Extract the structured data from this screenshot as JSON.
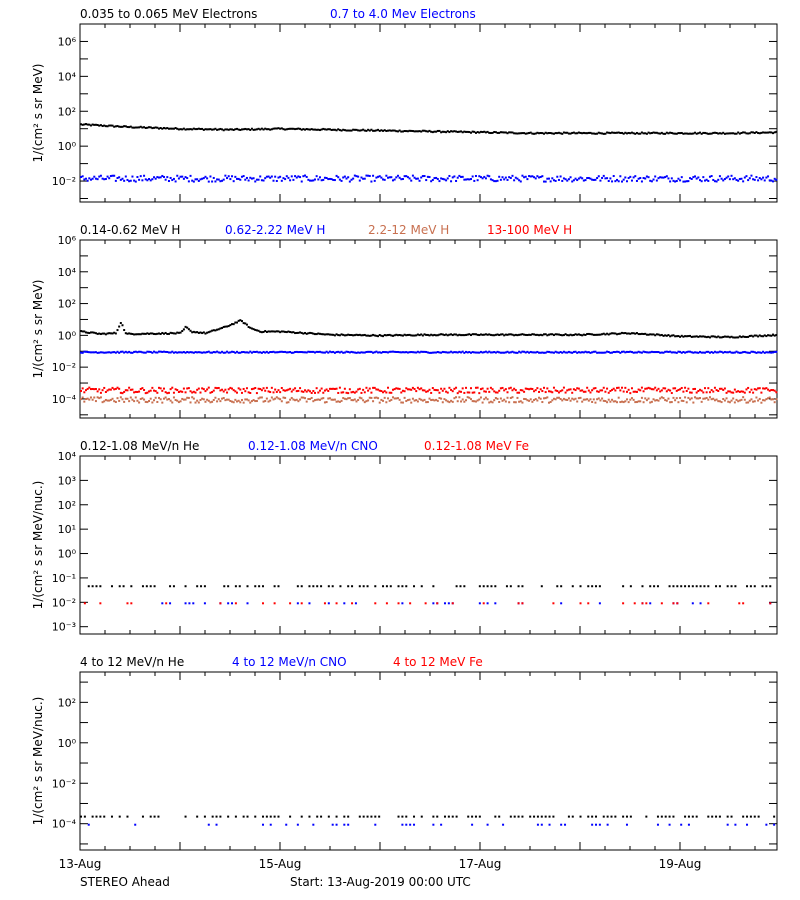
{
  "footer": {
    "left": "STEREO Ahead",
    "center": "Start: 13-Aug-2019 00:00 UTC"
  },
  "x_ticks": [
    {
      "day": 0,
      "label": "13-Aug"
    },
    {
      "day": 2,
      "label": "15-Aug"
    },
    {
      "day": 4,
      "label": "17-Aug"
    },
    {
      "day": 6,
      "label": "19-Aug"
    }
  ],
  "colors": {
    "black": "#000000",
    "blue": "#0000ff",
    "tan": "#c87050",
    "red": "#ff0000"
  },
  "chart_data": [
    {
      "type": "scatter",
      "title": "",
      "legend": [
        {
          "name": "0.035 to 0.065 MeV Electrons",
          "color": "#000000"
        },
        {
          "name": "0.7 to 4.0 Mev Electrons",
          "color": "#0000ff"
        }
      ],
      "ylabel": "1/(cm² s sr MeV)",
      "yscale": "log",
      "ylim_log10": [
        -3.2,
        7.0
      ],
      "yticks": [
        {
          "exp": -2,
          "label": "10⁻²"
        },
        {
          "exp": 0,
          "label": "10⁰"
        },
        {
          "exp": 2,
          "label": "10²"
        },
        {
          "exp": 4,
          "label": "10⁴"
        },
        {
          "exp": 6,
          "label": "10⁶"
        }
      ],
      "xlim_days": [
        0,
        7
      ],
      "series": [
        {
          "name": "0.035 to 0.065 MeV Electrons",
          "color": "#000000",
          "x_days": [
            0,
            0.5,
            1.0,
            1.5,
            2.0,
            2.5,
            3.0,
            3.5,
            4.0,
            4.5,
            5.0,
            5.5,
            6.0,
            6.5,
            7.0
          ],
          "y_log10": [
            1.3,
            1.15,
            1.05,
            1.0,
            1.05,
            1.0,
            0.95,
            0.9,
            0.85,
            0.8,
            0.8,
            0.8,
            0.8,
            0.8,
            0.85
          ]
        },
        {
          "name": "0.7 to 4.0 Mev Electrons",
          "color": "#0000ff",
          "x_days": [
            0,
            7
          ],
          "y_log10": [
            -1.8,
            -1.8
          ]
        }
      ]
    },
    {
      "type": "scatter",
      "title": "",
      "legend": [
        {
          "name": "0.14-0.62 MeV H",
          "color": "#000000"
        },
        {
          "name": "0.62-2.22 MeV H",
          "color": "#0000ff"
        },
        {
          "name": "2.2-12 MeV H",
          "color": "#c87050"
        },
        {
          "name": "13-100 MeV H",
          "color": "#ff0000"
        }
      ],
      "ylabel": "1/(cm² s sr MeV)",
      "yscale": "log",
      "ylim_log10": [
        -5.2,
        6.0
      ],
      "yticks": [
        {
          "exp": -4,
          "label": "10⁻⁴"
        },
        {
          "exp": -2,
          "label": "10⁻²"
        },
        {
          "exp": 0,
          "label": "10⁰"
        },
        {
          "exp": 2,
          "label": "10²"
        },
        {
          "exp": 4,
          "label": "10⁴"
        },
        {
          "exp": 6,
          "label": "10⁶"
        }
      ],
      "xlim_days": [
        0,
        7
      ],
      "series": [
        {
          "name": "0.14-0.62 MeV H",
          "color": "#000000",
          "x_days": [
            0,
            0.2,
            0.35,
            0.4,
            0.45,
            1.0,
            1.05,
            1.1,
            1.25,
            1.45,
            1.6,
            1.7,
            1.8,
            2.0,
            2.5,
            3.0,
            3.5,
            4.0,
            4.5,
            5.0,
            5.5,
            6.0,
            6.5,
            7.0
          ],
          "y_log10": [
            0.3,
            0.15,
            0.2,
            0.9,
            0.15,
            0.2,
            0.6,
            0.3,
            0.2,
            0.6,
            1.0,
            0.5,
            0.3,
            0.3,
            0.1,
            0.05,
            0.1,
            0.1,
            0.1,
            0.1,
            0.2,
            0.0,
            -0.05,
            0.1
          ]
        },
        {
          "name": "0.62-2.22 MeV H",
          "color": "#0000ff",
          "x_days": [
            0,
            7
          ],
          "y_log10": [
            -1.0,
            -1.0
          ]
        },
        {
          "name": "2.2-12 MeV H",
          "color": "#c87050",
          "x_days": [
            0,
            7
          ],
          "y_log10": [
            -4.0,
            -4.0
          ]
        },
        {
          "name": "13-100 MeV H",
          "color": "#ff0000",
          "x_days": [
            0,
            7
          ],
          "y_log10": [
            -3.4,
            -3.4
          ]
        }
      ]
    },
    {
      "type": "scatter",
      "title": "",
      "legend": [
        {
          "name": "0.12-1.08 MeV/n He",
          "color": "#000000"
        },
        {
          "name": "0.12-1.08 MeV/n CNO",
          "color": "#0000ff"
        },
        {
          "name": "0.12-1.08 MeV Fe",
          "color": "#ff0000"
        }
      ],
      "ylabel": "1/(cm² s sr MeV/nuc.)",
      "yscale": "log",
      "ylim_log10": [
        -3.3,
        4.0
      ],
      "yticks": [
        {
          "exp": -3,
          "label": "10⁻³"
        },
        {
          "exp": -2,
          "label": "10⁻²"
        },
        {
          "exp": -1,
          "label": "10⁻¹"
        },
        {
          "exp": 0,
          "label": "10⁰"
        },
        {
          "exp": 1,
          "label": "10¹"
        },
        {
          "exp": 2,
          "label": "10²"
        },
        {
          "exp": 3,
          "label": "10³"
        },
        {
          "exp": 4,
          "label": "10⁴"
        }
      ],
      "xlim_days": [
        0,
        7
      ],
      "series": [
        {
          "name": "0.12-1.08 MeV/n He",
          "color": "#000000",
          "x_days": [
            0,
            7
          ],
          "y_log10": [
            -1.3,
            -1.3
          ]
        },
        {
          "name": "0.12-1.08 MeV/n CNO",
          "color": "#0000ff",
          "x_days": [
            0,
            7
          ],
          "y_log10": [
            -2.0,
            -2.0
          ]
        },
        {
          "name": "0.12-1.08 MeV Fe",
          "color": "#ff0000",
          "x_days": [
            0,
            7
          ],
          "y_log10": [
            -2.0,
            -2.0
          ]
        }
      ]
    },
    {
      "type": "scatter",
      "title": "",
      "legend": [
        {
          "name": "4 to 12 MeV/n He",
          "color": "#000000"
        },
        {
          "name": "4 to 12 MeV/n CNO",
          "color": "#0000ff"
        },
        {
          "name": "4 to 12 MeV Fe",
          "color": "#ff0000"
        }
      ],
      "ylabel": "1/(cm² s sr MeV/nuc.)",
      "yscale": "log",
      "ylim_log10": [
        -5.3,
        3.5
      ],
      "yticks": [
        {
          "exp": -4,
          "label": "10⁻⁴"
        },
        {
          "exp": -2,
          "label": "10⁻²"
        },
        {
          "exp": 0,
          "label": "10⁰"
        },
        {
          "exp": 2,
          "label": "10²"
        }
      ],
      "xlim_days": [
        0,
        7
      ],
      "series": [
        {
          "name": "4 to 12 MeV/n He",
          "color": "#000000",
          "x_days": [
            0,
            7
          ],
          "y_log10": [
            -3.6,
            -3.6
          ]
        },
        {
          "name": "4 to 12 MeV/n CNO",
          "color": "#0000ff",
          "x_days": [
            0,
            7
          ],
          "y_log10": [
            -4.0,
            -4.0
          ]
        }
      ]
    }
  ]
}
